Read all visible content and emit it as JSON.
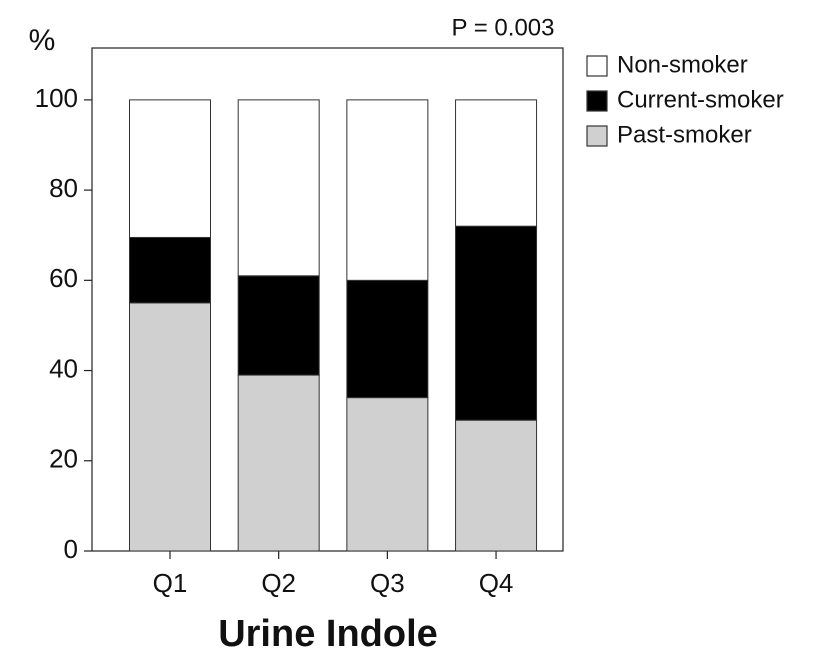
{
  "chart_data": {
    "type": "stacked_bar",
    "y_label": "%",
    "annotation": "P = 0.003",
    "x_label": "Urine Indole",
    "categories": [
      "Q1",
      "Q2",
      "Q3",
      "Q4"
    ],
    "series": [
      {
        "name": "Non-smoker",
        "color": "#ffffff",
        "values": [
          30.5,
          39,
          40,
          28
        ]
      },
      {
        "name": "Current-smoker",
        "color": "#000000",
        "values": [
          14.5,
          22,
          26,
          43
        ]
      },
      {
        "name": "Past-smoker",
        "color": "#d0d0d0",
        "values": [
          55,
          39,
          34,
          29
        ]
      }
    ],
    "ylim": [
      0,
      111.5
    ],
    "yticks": [
      0,
      20,
      40,
      60,
      80,
      100
    ],
    "grid": false
  }
}
